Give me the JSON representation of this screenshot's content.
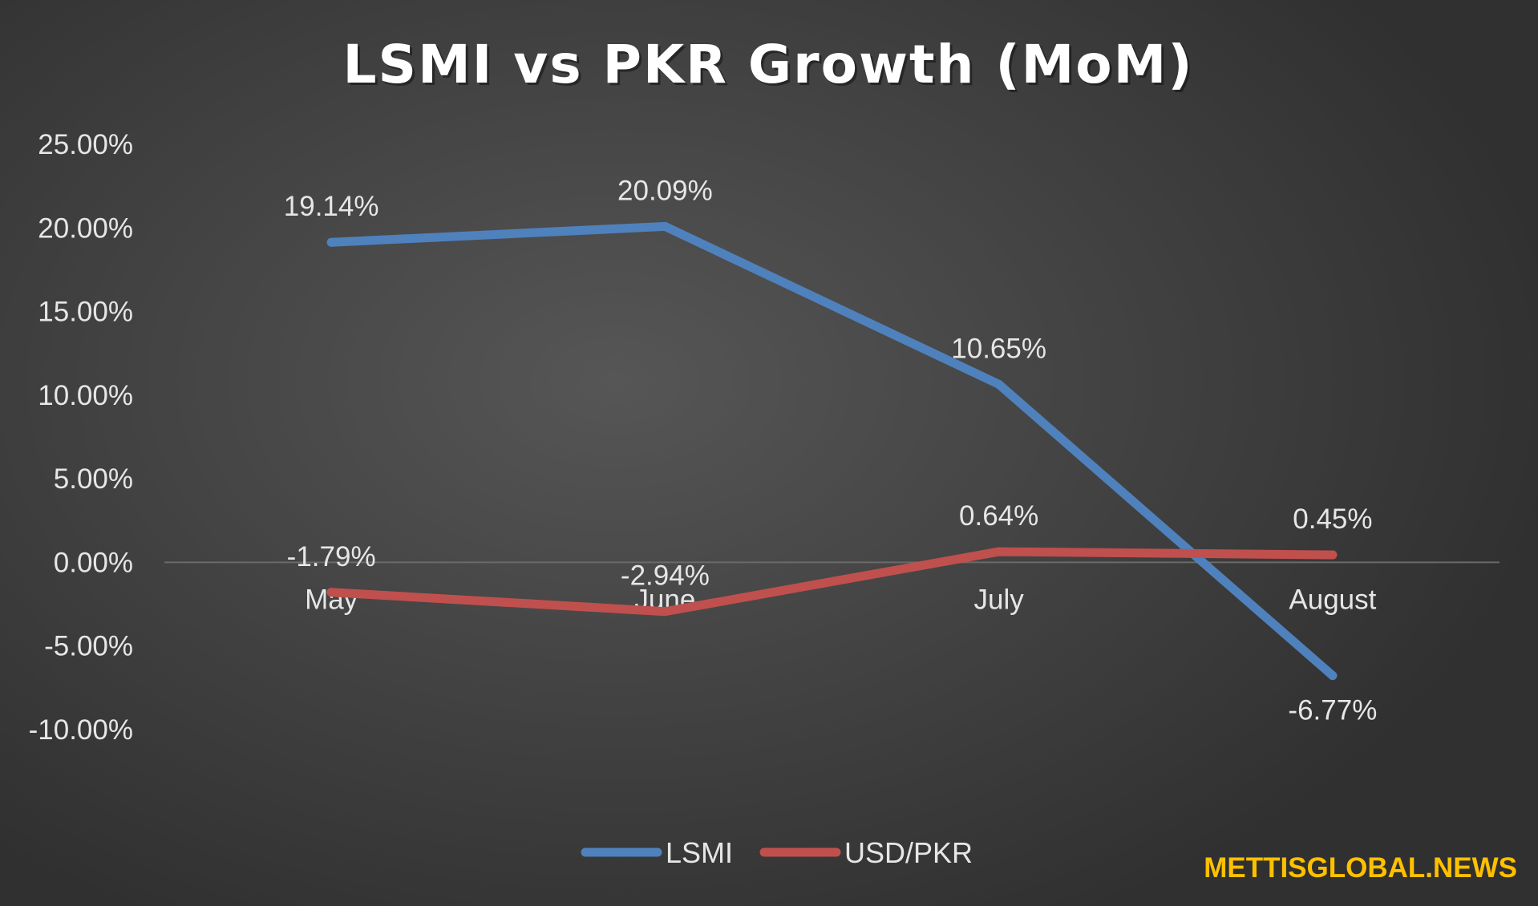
{
  "chart_data": {
    "type": "line",
    "title": "LSMI vs PKR Growth (MoM)",
    "categories": [
      "May",
      "June",
      "July",
      "August"
    ],
    "series": [
      {
        "name": "LSMI",
        "color": "#4f81bd",
        "values": [
          19.14,
          20.09,
          10.65,
          -6.77
        ],
        "labels": [
          "19.14%",
          "20.09%",
          "10.65%",
          "-6.77%"
        ]
      },
      {
        "name": "USD/PKR",
        "color": "#c0504d",
        "values": [
          -1.79,
          -2.94,
          0.64,
          0.45
        ],
        "labels": [
          "-1.79%",
          "-2.94%",
          "0.64%",
          "0.45%"
        ]
      }
    ],
    "y_ticks": [
      25,
      20,
      15,
      10,
      5,
      0,
      -5,
      -10
    ],
    "y_tick_labels": [
      "25.00%",
      "20.00%",
      "15.00%",
      "10.00%",
      "5.00%",
      "0.00%",
      "-5.00%",
      "-10.00%"
    ],
    "ylim": [
      -10,
      25
    ],
    "grid": false,
    "zero_line": true,
    "legend_position": "bottom",
    "xlabel": "",
    "ylabel": ""
  },
  "watermark": "METTISGLOBAL.NEWS",
  "colors": {
    "background": "#404040",
    "text": "#e6e6e6",
    "lsmi": "#4f81bd",
    "usd_pkr": "#c0504d",
    "watermark": "#ffc000"
  }
}
